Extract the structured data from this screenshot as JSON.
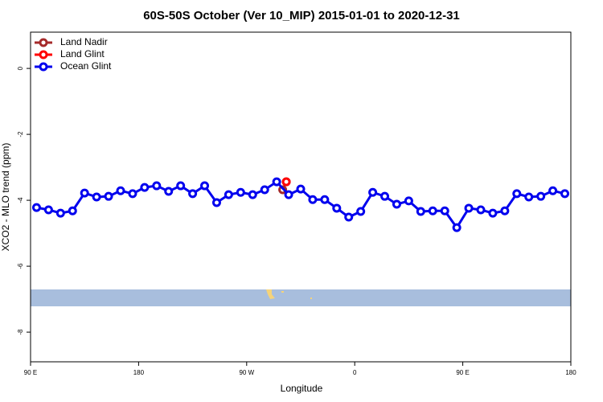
{
  "chart_data": {
    "type": "line",
    "title": "60S-50S October (Ver 10_MIP)   2015-01-01 to 2020-12-31",
    "xlabel": "Longitude",
    "ylabel": "XCO2 - MLO trend (ppm)",
    "xlim": [
      90,
      540
    ],
    "xticks": [
      {
        "value": 90,
        "label": "90 E"
      },
      {
        "value": 180,
        "label": "180"
      },
      {
        "value": 270,
        "label": "90 W"
      },
      {
        "value": 360,
        "label": "0"
      },
      {
        "value": 450,
        "label": "90 E"
      },
      {
        "value": 540,
        "label": "180"
      }
    ],
    "ylim": [
      -8.9,
      1.1
    ],
    "yticks": [
      0,
      -2,
      -4,
      -6,
      -8
    ],
    "legend": "top-left",
    "series": [
      {
        "name": "Land Nadir",
        "color": "#a52a2a",
        "x": [
          300,
          303
        ],
        "values": [
          -3.68,
          -3.44
        ]
      },
      {
        "name": "Land Glint",
        "color": "#ff0000",
        "x": [
          303
        ],
        "values": [
          -3.44
        ]
      },
      {
        "name": "Ocean Glint",
        "color": "#0000ee",
        "x": [
          95,
          105,
          115,
          125,
          135,
          145,
          155,
          165,
          175,
          185,
          195,
          205,
          215,
          225,
          235,
          245,
          255,
          265,
          275,
          285,
          295,
          305,
          315,
          325,
          335,
          345,
          355,
          365,
          375,
          385,
          395,
          405,
          415,
          425,
          435,
          445,
          455,
          465,
          475,
          485,
          495,
          505,
          515,
          525,
          535
        ],
        "values": [
          -4.22,
          -4.29,
          -4.39,
          -4.32,
          -3.78,
          -3.9,
          -3.88,
          -3.71,
          -3.8,
          -3.61,
          -3.56,
          -3.73,
          -3.56,
          -3.8,
          -3.56,
          -4.07,
          -3.83,
          -3.76,
          -3.83,
          -3.68,
          -3.44,
          -3.83,
          -3.66,
          -3.98,
          -3.98,
          -4.24,
          -4.51,
          -4.34,
          -3.76,
          -3.88,
          -4.12,
          -4.02,
          -4.34,
          -4.32,
          -4.32,
          -4.83,
          -4.24,
          -4.29,
          -4.39,
          -4.32,
          -3.8,
          -3.9,
          -3.88,
          -3.71,
          -3.8
        ]
      }
    ]
  }
}
